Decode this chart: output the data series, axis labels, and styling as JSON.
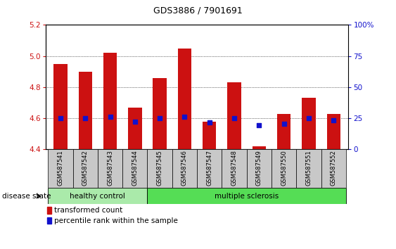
{
  "title": "GDS3886 / 7901691",
  "samples": [
    "GSM587541",
    "GSM587542",
    "GSM587543",
    "GSM587544",
    "GSM587545",
    "GSM587546",
    "GSM587547",
    "GSM587548",
    "GSM587549",
    "GSM587550",
    "GSM587551",
    "GSM587552"
  ],
  "bar_values": [
    4.95,
    4.9,
    5.02,
    4.67,
    4.86,
    5.05,
    4.58,
    4.83,
    4.42,
    4.63,
    4.73,
    4.63
  ],
  "bar_bottom": 4.4,
  "percentile_values": [
    4.6,
    4.6,
    4.61,
    4.58,
    4.6,
    4.61,
    4.575,
    4.6,
    4.555,
    4.565,
    4.6,
    4.585
  ],
  "ylim": [
    4.4,
    5.2
  ],
  "ylim_right": [
    0,
    100
  ],
  "yticks_left": [
    4.4,
    4.6,
    4.8,
    5.0,
    5.2
  ],
  "yticks_right": [
    0,
    25,
    50,
    75,
    100
  ],
  "ytick_labels_right": [
    "0",
    "25",
    "50",
    "75",
    "100%"
  ],
  "bar_color": "#cc1111",
  "dot_color": "#1111cc",
  "grid_color": "black",
  "healthy_count": 4,
  "multiple_sclerosis_count": 8,
  "label_healthy": "healthy control",
  "label_ms": "multiple sclerosis",
  "label_disease": "disease state",
  "legend_bar_label": "transformed count",
  "legend_dot_label": "percentile rank within the sample",
  "tick_label_color_left": "#cc1111",
  "tick_label_color_right": "#1111cc",
  "healthy_color": "#aaeaaa",
  "ms_color": "#55dd55",
  "bg_xtick": "#c8c8c8",
  "title_fontsize": 9,
  "axis_fontsize": 7.5,
  "legend_fontsize": 7.5,
  "label_fontsize": 7.5,
  "sample_fontsize": 6
}
